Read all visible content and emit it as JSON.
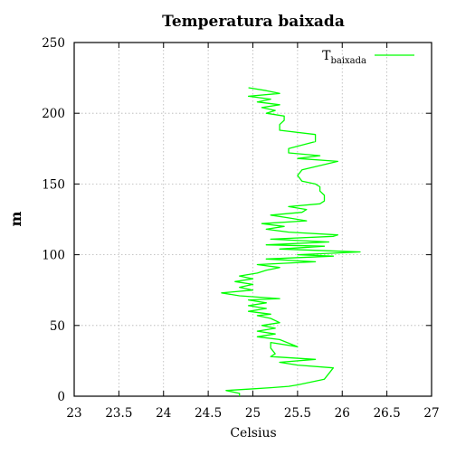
{
  "chart_data": {
    "type": "line",
    "title": "Temperatura baixada",
    "xlabel": "Celsius",
    "ylabel": "m",
    "xlim": [
      23,
      27
    ],
    "ylim": [
      0,
      250
    ],
    "x_ticks": [
      "23",
      "23.5",
      "24",
      "24.5",
      "25",
      "25.5",
      "26",
      "26.5",
      "27"
    ],
    "y_ticks": [
      "0",
      "50",
      "100",
      "150",
      "200",
      "250"
    ],
    "grid": true,
    "legend_position": "top-right",
    "legend": {
      "main": "T",
      "sub": "baixada"
    },
    "series_color": "#00ff00",
    "series": [
      {
        "name": "Tbaixada",
        "points": [
          [
            24.85,
            0
          ],
          [
            24.85,
            2
          ],
          [
            24.7,
            4
          ],
          [
            24.95,
            5
          ],
          [
            25.2,
            6
          ],
          [
            25.4,
            7
          ],
          [
            25.5,
            8
          ],
          [
            25.8,
            12
          ],
          [
            25.9,
            20
          ],
          [
            25.5,
            22
          ],
          [
            25.3,
            24
          ],
          [
            25.7,
            26
          ],
          [
            25.2,
            28
          ],
          [
            25.25,
            30
          ],
          [
            25.2,
            34
          ],
          [
            25.2,
            38
          ],
          [
            25.5,
            35
          ],
          [
            25.3,
            40
          ],
          [
            25.05,
            42
          ],
          [
            25.25,
            44
          ],
          [
            25.05,
            46
          ],
          [
            25.25,
            48
          ],
          [
            25.1,
            50
          ],
          [
            25.3,
            52
          ],
          [
            25.2,
            55
          ],
          [
            25.05,
            57
          ],
          [
            25.2,
            58
          ],
          [
            24.95,
            60
          ],
          [
            25.15,
            62
          ],
          [
            24.95,
            64
          ],
          [
            25.15,
            66
          ],
          [
            24.95,
            68
          ],
          [
            25.3,
            69
          ],
          [
            24.85,
            71
          ],
          [
            24.65,
            73
          ],
          [
            25.0,
            75
          ],
          [
            24.85,
            77
          ],
          [
            25.0,
            79
          ],
          [
            24.8,
            81
          ],
          [
            25.0,
            83
          ],
          [
            24.85,
            85
          ],
          [
            25.05,
            87
          ],
          [
            25.15,
            89
          ],
          [
            25.3,
            91
          ],
          [
            25.05,
            93
          ],
          [
            25.7,
            95
          ],
          [
            25.15,
            97
          ],
          [
            25.9,
            99
          ],
          [
            25.5,
            100
          ],
          [
            26.2,
            102
          ],
          [
            25.3,
            104
          ],
          [
            25.8,
            106
          ],
          [
            25.15,
            107
          ],
          [
            25.85,
            109
          ],
          [
            25.2,
            111
          ],
          [
            25.9,
            113
          ],
          [
            25.95,
            114
          ],
          [
            25.4,
            116
          ],
          [
            25.15,
            118
          ],
          [
            25.35,
            120
          ],
          [
            25.1,
            122
          ],
          [
            25.6,
            124
          ],
          [
            25.4,
            126
          ],
          [
            25.2,
            128
          ],
          [
            25.55,
            130
          ],
          [
            25.6,
            132
          ],
          [
            25.4,
            134
          ],
          [
            25.75,
            136
          ],
          [
            25.8,
            138
          ],
          [
            25.8,
            142
          ],
          [
            25.75,
            145
          ],
          [
            25.75,
            148
          ],
          [
            25.7,
            150
          ],
          [
            25.55,
            152
          ],
          [
            25.5,
            156
          ],
          [
            25.55,
            160
          ],
          [
            25.95,
            166
          ],
          [
            25.5,
            168
          ],
          [
            25.75,
            170
          ],
          [
            25.4,
            172
          ],
          [
            25.4,
            175
          ],
          [
            25.7,
            180
          ],
          [
            25.7,
            185
          ],
          [
            25.3,
            188
          ],
          [
            25.3,
            192
          ],
          [
            25.35,
            195
          ],
          [
            25.35,
            198
          ],
          [
            25.15,
            200
          ],
          [
            25.25,
            202
          ],
          [
            25.1,
            204
          ],
          [
            25.3,
            206
          ],
          [
            25.05,
            208
          ],
          [
            25.2,
            210
          ],
          [
            24.95,
            212
          ],
          [
            25.3,
            214
          ],
          [
            25.15,
            216
          ],
          [
            24.95,
            218
          ]
        ]
      }
    ]
  }
}
